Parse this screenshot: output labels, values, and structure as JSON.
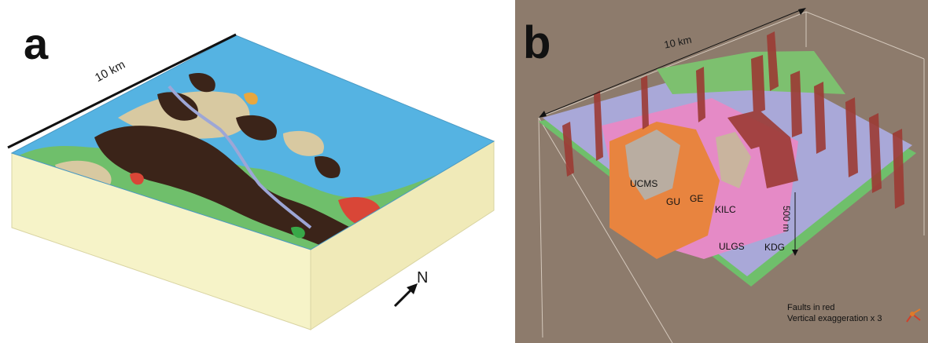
{
  "panel_a": {
    "label": "a",
    "scale_label": "10 km",
    "north_label": "N"
  },
  "panel_b": {
    "label": "b",
    "scale_label": "10 km",
    "unit_labels": [
      "UCMS",
      "GU",
      "GE",
      "KILC",
      "ULGS",
      "KDG"
    ],
    "depth_label": "500 m",
    "note_faults": "Faults in red",
    "note_exaggeration": "Vertical exaggeration x 3"
  },
  "colors": {
    "base_cream": "#f6f3c8",
    "water_blue": "#55b3e2",
    "dark_brown": "#3b2419",
    "tan": "#d8c9a1",
    "green": "#6fbf6b",
    "red": "#d94637",
    "orange": "#e8843f",
    "pink": "#e58ac6",
    "lavender": "#a9a8d8",
    "fault_red": "#9c3b34",
    "background_b": "#8d7b6c"
  }
}
